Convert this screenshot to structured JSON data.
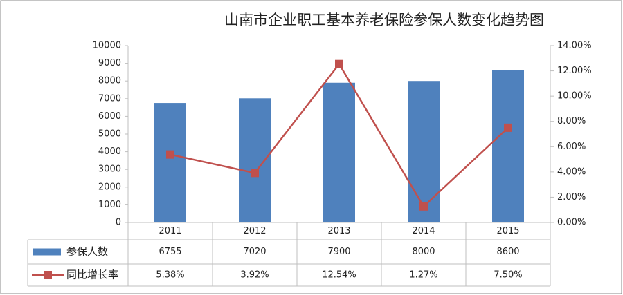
{
  "chart_data": {
    "type": "bar",
    "title": "山南市企业职工基本养老保险参保人数变化趋势图",
    "categories": [
      "2011",
      "2012",
      "2013",
      "2014",
      "2015"
    ],
    "series": [
      {
        "name": "参保人数",
        "type": "bar",
        "color": "#4f81bd",
        "values": [
          6755,
          7020,
          7900,
          8000,
          8600
        ]
      },
      {
        "name": "同比增长率",
        "type": "line",
        "axis": "y2",
        "color": "#c0504d",
        "values": [
          5.38,
          3.92,
          12.54,
          1.27,
          7.5
        ],
        "value_labels": [
          "5.38%",
          "3.92%",
          "12.54%",
          "1.27%",
          "7.50%"
        ]
      }
    ],
    "ylim": [
      0,
      10000
    ],
    "yticks": [
      0,
      1000,
      2000,
      3000,
      4000,
      5000,
      6000,
      7000,
      8000,
      9000,
      10000
    ],
    "y2lim": [
      0,
      14
    ],
    "y2ticks": [
      {
        "value": 0,
        "label": "0.00%"
      },
      {
        "value": 2,
        "label": "2.00%"
      },
      {
        "value": 4,
        "label": "4.00%"
      },
      {
        "value": 6,
        "label": "6.00%"
      },
      {
        "value": 8,
        "label": "8.00%"
      },
      {
        "value": 10,
        "label": "10.00%"
      },
      {
        "value": 12,
        "label": "12.00%"
      },
      {
        "value": 14,
        "label": "14.00%"
      }
    ],
    "grid": false,
    "data_table": true
  }
}
